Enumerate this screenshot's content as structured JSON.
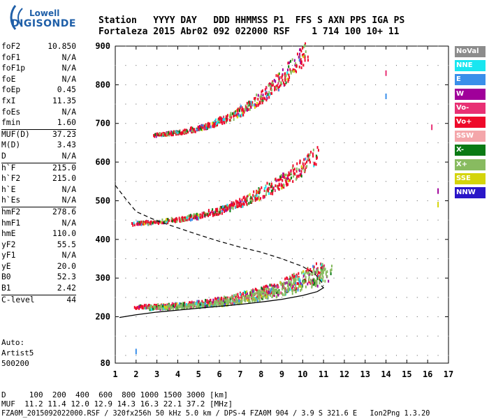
{
  "logo": {
    "line1": "Lowell",
    "line2": "DIGISONDE"
  },
  "header": {
    "line1": "Station   YYYY DAY   DDD HHMMSS P1  FFS S AXN PPS IGA PS",
    "line2": "Fortaleza 2015 Abr02 092 022000 RSF    1 714 100 10+ 11"
  },
  "params": [
    {
      "k": "foF2",
      "v": "10.850",
      "sep": false
    },
    {
      "k": "foF1",
      "v": "N/A",
      "sep": false
    },
    {
      "k": "foF1p",
      "v": "N/A",
      "sep": false
    },
    {
      "k": "foE",
      "v": "N/A",
      "sep": false
    },
    {
      "k": "foEp",
      "v": "0.45",
      "sep": false
    },
    {
      "k": "fxI",
      "v": "11.35",
      "sep": false
    },
    {
      "k": "foEs",
      "v": "N/A",
      "sep": false
    },
    {
      "k": "fmin",
      "v": "1.60",
      "sep": false
    },
    {
      "k": "MUF(D)",
      "v": "37.23",
      "sep": true
    },
    {
      "k": "M(D)",
      "v": "3.43",
      "sep": false
    },
    {
      "k": "D",
      "v": "N/A",
      "sep": false
    },
    {
      "k": "h`F",
      "v": "215.0",
      "sep": true
    },
    {
      "k": "h`F2",
      "v": "215.0",
      "sep": false
    },
    {
      "k": "h`E",
      "v": "N/A",
      "sep": false
    },
    {
      "k": "h`Es",
      "v": "N/A",
      "sep": false
    },
    {
      "k": "hmF2",
      "v": "278.6",
      "sep": true
    },
    {
      "k": "hmF1",
      "v": "N/A",
      "sep": false
    },
    {
      "k": "hmE",
      "v": "110.0",
      "sep": false
    },
    {
      "k": "yF2",
      "v": "55.5",
      "sep": false
    },
    {
      "k": "yF1",
      "v": "N/A",
      "sep": false
    },
    {
      "k": "yE",
      "v": "20.0",
      "sep": false
    },
    {
      "k": "B0",
      "v": "52.3",
      "sep": false
    },
    {
      "k": "B1",
      "v": "2.42",
      "sep": false
    },
    {
      "k": "C-level",
      "v": "44",
      "sep": true
    }
  ],
  "auto": {
    "line1": "Auto:",
    "line2": "Artist5",
    "line3": "500200"
  },
  "footer": {
    "line1": "D     100  200  400  600  800 1000 1500 3000 [km]",
    "line2": "MUF  11.2 11.4 12.0 12.9 14.3 16.3 22.1 37.2 [MHz]",
    "line3": "FZA0M_2015092022000.RSF / 320fx256h 50 kHz 5.0 km / DPS-4 FZA0M 904 / 3.9 S 321.6 E   Ion2Png 1.3.20"
  },
  "legend": [
    {
      "label": "NoVal",
      "color": "#8c8c8c"
    },
    {
      "label": "NNE",
      "color": "#19e6f0"
    },
    {
      "label": "E",
      "color": "#3a8fea"
    },
    {
      "label": "W",
      "color": "#a0009a"
    },
    {
      "label": "Vo-",
      "color": "#e83074"
    },
    {
      "label": "Vo+",
      "color": "#ee0a2a"
    },
    {
      "label": "SSW",
      "color": "#f4a6aa"
    },
    {
      "label": "X-",
      "color": "#0a7a14"
    },
    {
      "label": "X+",
      "color": "#88bb60"
    },
    {
      "label": "SSE",
      "color": "#d4d40a"
    },
    {
      "label": "NNW",
      "color": "#2a16c8"
    }
  ],
  "chart_data": {
    "type": "scatter",
    "title": "",
    "xlabel": "",
    "ylabel": "",
    "xlim": [
      1,
      17
    ],
    "ylim": [
      80,
      900
    ],
    "xticks": [
      1,
      2,
      3,
      4,
      5,
      6,
      7,
      8,
      9,
      10,
      11,
      12,
      13,
      14,
      15,
      16,
      17
    ],
    "yticks": [
      80,
      200,
      300,
      400,
      500,
      600,
      700,
      800,
      900
    ],
    "grid": true,
    "legend_position": "right",
    "series": [
      {
        "trace": "o-trace 1st order",
        "start": [
          2.0,
          225
        ],
        "end": [
          11.0,
          320
        ],
        "color": "#ee0a2a"
      },
      {
        "trace": "x-trace 1st order",
        "start": [
          2.6,
          222
        ],
        "end": [
          11.4,
          320
        ],
        "color": "#88bb60"
      },
      {
        "trace": "o-trace 2nd order",
        "start": [
          1.8,
          440
        ],
        "end": [
          10.7,
          620
        ],
        "color": "#ee0a2a"
      },
      {
        "trace": "o-trace 3rd order",
        "start": [
          2.9,
          670
        ],
        "end": [
          10.2,
          890
        ],
        "color": "#ee0a2a"
      }
    ],
    "profile_solid": [
      [
        1.2,
        198
      ],
      [
        2,
        205
      ],
      [
        3,
        212
      ],
      [
        4,
        217
      ],
      [
        5,
        222
      ],
      [
        6,
        227
      ],
      [
        7,
        232
      ],
      [
        8,
        238
      ],
      [
        9,
        245
      ],
      [
        10,
        255
      ],
      [
        10.7,
        265
      ],
      [
        11.0,
        275
      ],
      [
        10.9,
        280
      ]
    ],
    "profile_dashed": [
      [
        1.0,
        540
      ],
      [
        1.5,
        505
      ],
      [
        2,
        472
      ],
      [
        3,
        448
      ],
      [
        4,
        430
      ],
      [
        5,
        412
      ],
      [
        6,
        395
      ],
      [
        7,
        380
      ],
      [
        8,
        367
      ],
      [
        9,
        350
      ],
      [
        10,
        330
      ],
      [
        10.6,
        310
      ],
      [
        10.9,
        290
      ],
      [
        11.0,
        280
      ]
    ],
    "side_marks": [
      {
        "x": 14.0,
        "y": 770,
        "color": "#3a8fea"
      },
      {
        "x": 14.0,
        "y": 830,
        "color": "#e83074"
      },
      {
        "x": 16.2,
        "y": 690,
        "color": "#e83074"
      },
      {
        "x": 16.5,
        "y": 525,
        "color": "#a0009a"
      },
      {
        "x": 16.5,
        "y": 490,
        "color": "#d4d40a"
      },
      {
        "x": 2.0,
        "y": 110,
        "color": "#3a8fea"
      }
    ]
  }
}
